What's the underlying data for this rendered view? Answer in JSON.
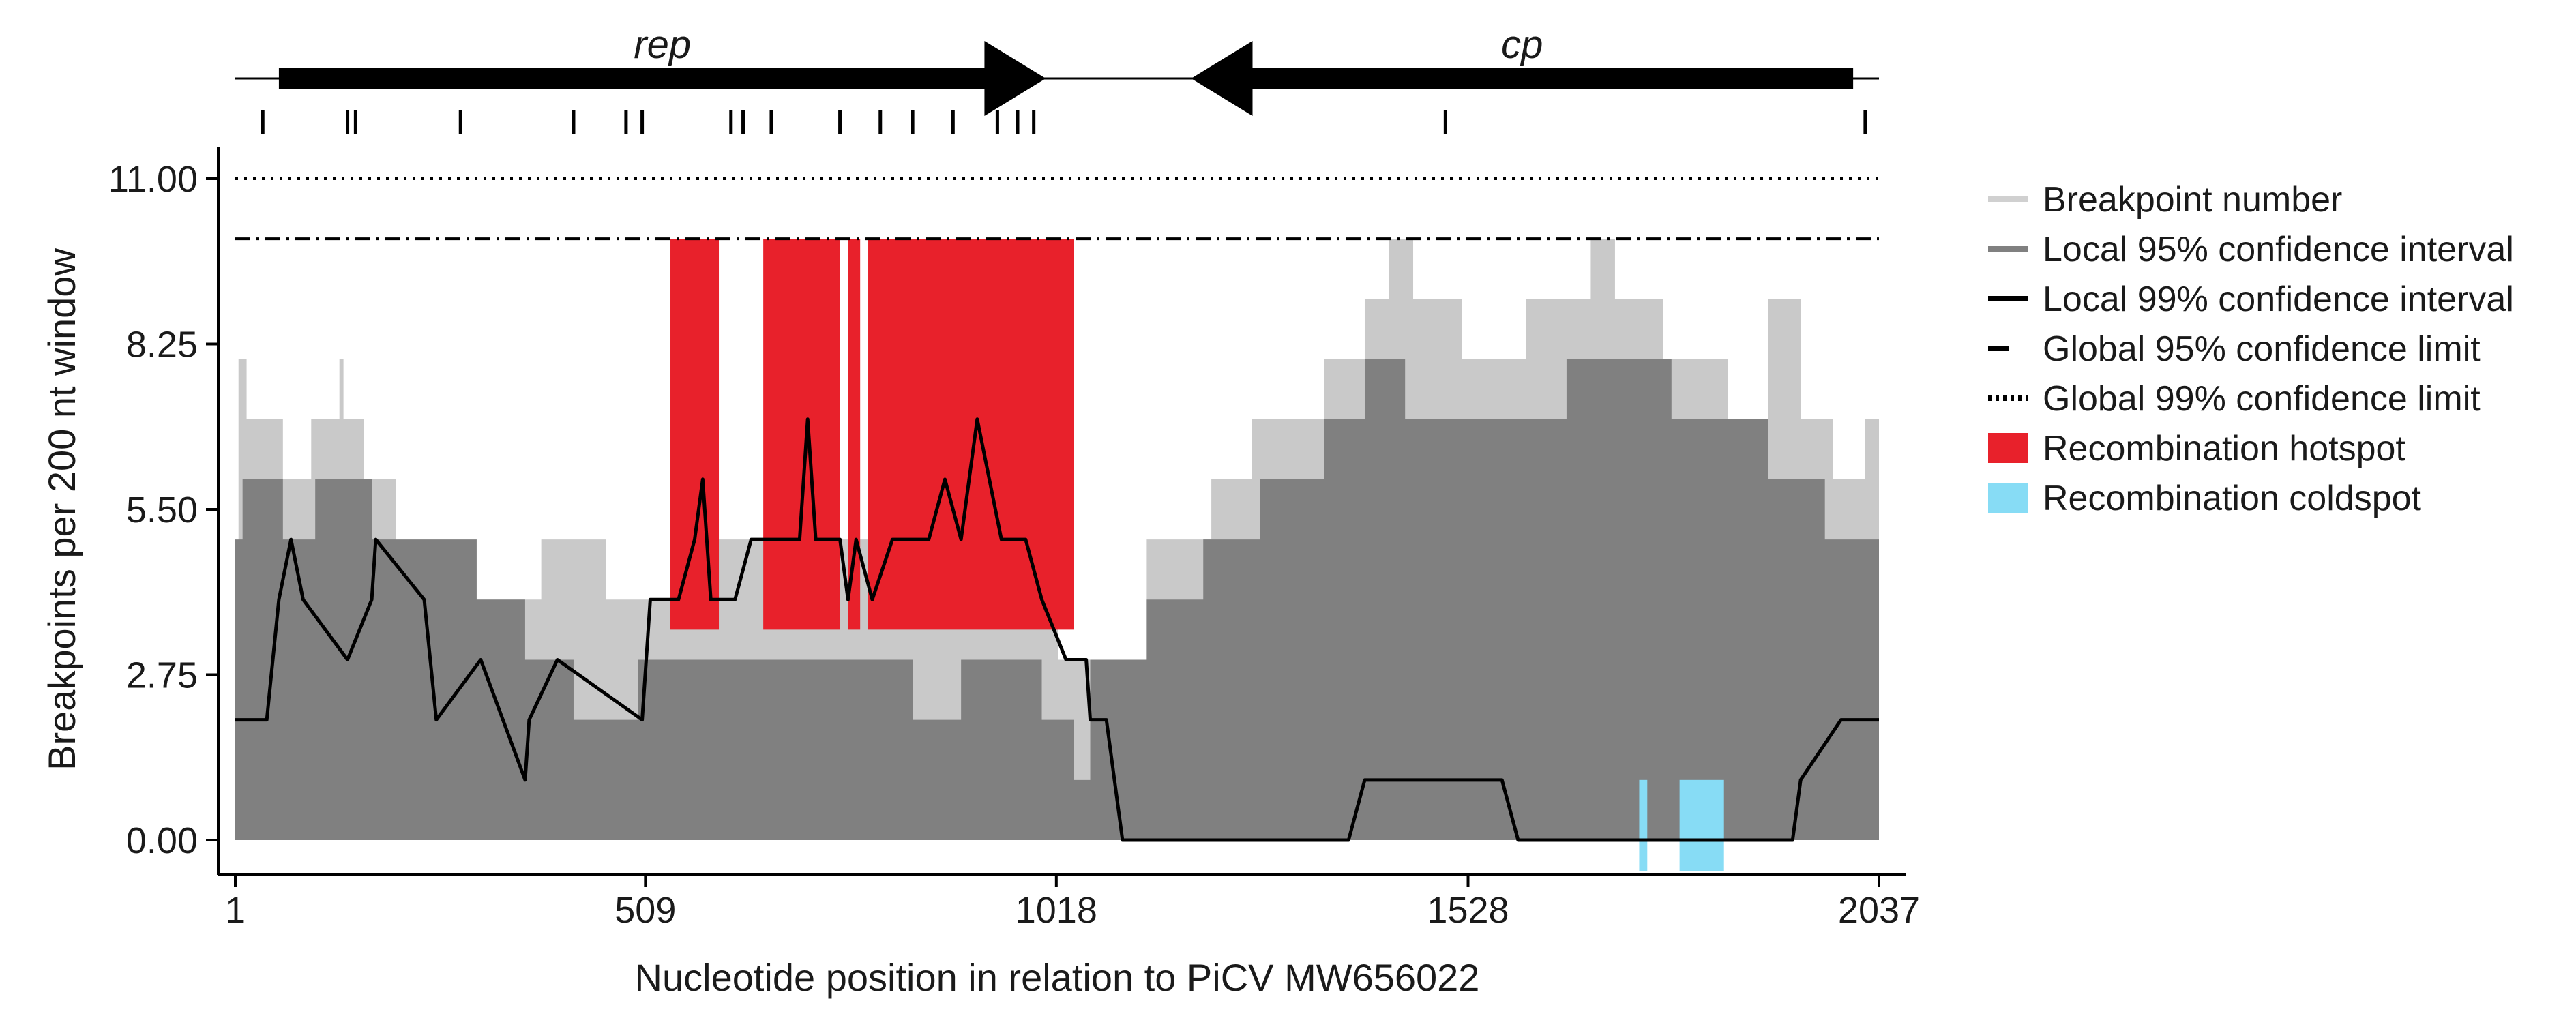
{
  "chart_data": {
    "type": "area",
    "xlabel": "Nucleotide position in relation to PiCV MW656022",
    "ylabel": "Breakpoints per 200 nt window",
    "xlim": [
      1,
      2037
    ],
    "ylim": [
      0,
      11
    ],
    "x_ticks": [
      "1",
      "509",
      "1018",
      "1528",
      "2037"
    ],
    "y_ticks": [
      "0.00",
      "2.75",
      "5.50",
      "8.25",
      "11.00"
    ],
    "global_99_limit": 11,
    "global_95_limit": 10,
    "genes": [
      {
        "name": "rep",
        "start": 55,
        "end": 1005,
        "strand": "+"
      },
      {
        "name": "cp",
        "start": 1185,
        "end": 2005,
        "strand": "-"
      }
    ],
    "breakpoint_positions": [
      35,
      140,
      150,
      280,
      420,
      485,
      505,
      615,
      630,
      665,
      750,
      800,
      840,
      890,
      945,
      970,
      990,
      1500,
      2020
    ],
    "series": [
      {
        "name": "Breakpoint number",
        "color": "#c9c9c9",
        "points": [
          [
            1,
            4
          ],
          [
            5,
            8
          ],
          [
            15,
            7
          ],
          [
            60,
            6
          ],
          [
            95,
            7
          ],
          [
            130,
            8
          ],
          [
            135,
            7
          ],
          [
            160,
            6
          ],
          [
            200,
            4
          ],
          [
            330,
            4
          ],
          [
            380,
            5
          ],
          [
            460,
            4
          ],
          [
            570,
            5
          ],
          [
            870,
            5
          ],
          [
            960,
            4
          ],
          [
            1020,
            3
          ],
          [
            1080,
            3
          ],
          [
            1130,
            5
          ],
          [
            1210,
            6
          ],
          [
            1260,
            7
          ],
          [
            1350,
            8
          ],
          [
            1400,
            9
          ],
          [
            1430,
            10
          ],
          [
            1460,
            9
          ],
          [
            1520,
            8
          ],
          [
            1600,
            9
          ],
          [
            1680,
            10
          ],
          [
            1710,
            9
          ],
          [
            1770,
            8
          ],
          [
            1850,
            7
          ],
          [
            1900,
            9
          ],
          [
            1940,
            7
          ],
          [
            1980,
            6
          ],
          [
            2020,
            7
          ],
          [
            2037,
            8
          ]
        ]
      },
      {
        "name": "Local 95% confidence interval",
        "color": "#808080",
        "points": [
          [
            1,
            5
          ],
          [
            10,
            6
          ],
          [
            60,
            5
          ],
          [
            100,
            6
          ],
          [
            170,
            5
          ],
          [
            300,
            4
          ],
          [
            360,
            3
          ],
          [
            420,
            2
          ],
          [
            500,
            3
          ],
          [
            800,
            3
          ],
          [
            840,
            2
          ],
          [
            900,
            3
          ],
          [
            1000,
            2
          ],
          [
            1040,
            1
          ],
          [
            1060,
            3
          ],
          [
            1130,
            4
          ],
          [
            1200,
            5
          ],
          [
            1270,
            6
          ],
          [
            1350,
            7
          ],
          [
            1400,
            8
          ],
          [
            1450,
            7
          ],
          [
            1530,
            7
          ],
          [
            1600,
            7
          ],
          [
            1650,
            8
          ],
          [
            1780,
            7
          ],
          [
            1900,
            6
          ],
          [
            1970,
            5
          ],
          [
            2037,
            6
          ]
        ]
      },
      {
        "name": "Local 99% confidence interval",
        "color": "#000000",
        "points": [
          [
            1,
            2
          ],
          [
            40,
            2
          ],
          [
            55,
            4
          ],
          [
            70,
            5
          ],
          [
            85,
            4
          ],
          [
            140,
            3
          ],
          [
            170,
            4
          ],
          [
            175,
            5
          ],
          [
            235,
            4
          ],
          [
            250,
            2
          ],
          [
            305,
            3
          ],
          [
            360,
            1
          ],
          [
            365,
            2
          ],
          [
            400,
            3
          ],
          [
            505,
            2
          ],
          [
            515,
            4
          ],
          [
            550,
            4
          ],
          [
            570,
            5
          ],
          [
            580,
            6
          ],
          [
            590,
            4
          ],
          [
            620,
            4
          ],
          [
            640,
            5
          ],
          [
            700,
            5
          ],
          [
            710,
            7
          ],
          [
            720,
            5
          ],
          [
            750,
            5
          ],
          [
            760,
            4
          ],
          [
            770,
            5
          ],
          [
            790,
            4
          ],
          [
            815,
            5
          ],
          [
            860,
            5
          ],
          [
            880,
            6
          ],
          [
            900,
            5
          ],
          [
            920,
            7
          ],
          [
            950,
            5
          ],
          [
            980,
            5
          ],
          [
            1000,
            4
          ],
          [
            1030,
            3
          ],
          [
            1055,
            3
          ],
          [
            1060,
            2
          ],
          [
            1080,
            2
          ],
          [
            1100,
            0
          ],
          [
            1380,
            0
          ],
          [
            1400,
            1
          ],
          [
            1570,
            1
          ],
          [
            1590,
            0
          ],
          [
            1930,
            0
          ],
          [
            1940,
            1
          ],
          [
            1990,
            2
          ],
          [
            2037,
            2
          ]
        ]
      }
    ],
    "hotspots": [
      [
        540,
        600
      ],
      [
        655,
        750
      ],
      [
        760,
        775
      ],
      [
        785,
        1015
      ],
      [
        1015,
        1040
      ]
    ],
    "coldspots": [
      [
        1740,
        1750
      ],
      [
        1790,
        1845
      ]
    ],
    "legend": [
      {
        "label": "Breakpoint number",
        "style": "line",
        "color": "#d0d0d0"
      },
      {
        "label": "Local 95% confidence interval",
        "style": "line",
        "color": "#808080"
      },
      {
        "label": "Local 99% confidence interval",
        "style": "line",
        "color": "#000000"
      },
      {
        "label": "Global 95% confidence limit",
        "style": "dashdot",
        "color": "#000000"
      },
      {
        "label": "Global 99% confidence limit",
        "style": "dotted",
        "color": "#000000"
      },
      {
        "label": "Recombination hotspot",
        "style": "box",
        "color": "#e8212b"
      },
      {
        "label": "Recombination coldspot",
        "style": "box",
        "color": "#87dcf5"
      }
    ],
    "legend_position": "right",
    "grid": false
  }
}
